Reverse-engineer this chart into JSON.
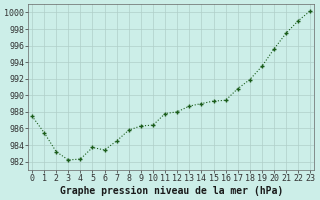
{
  "x": [
    0,
    1,
    2,
    3,
    4,
    5,
    6,
    7,
    8,
    9,
    10,
    11,
    12,
    13,
    14,
    15,
    16,
    17,
    18,
    19,
    20,
    21,
    22,
    23
  ],
  "y": [
    987.5,
    985.5,
    983.2,
    982.2,
    982.3,
    983.7,
    983.4,
    984.5,
    985.8,
    986.3,
    986.4,
    987.8,
    988.0,
    988.7,
    989.0,
    989.3,
    989.4,
    990.8,
    991.9,
    993.5,
    995.6,
    997.5,
    999.0,
    1000.2
  ],
  "line_color": "#1a5c1a",
  "marker_color": "#1a5c1a",
  "bg_color": "#cceee8",
  "grid_color": "#b0cfc9",
  "xlabel": "Graphe pression niveau de la mer (hPa)",
  "ylim": [
    981.0,
    1001.0
  ],
  "xlim": [
    -0.3,
    23.3
  ],
  "yticks": [
    982,
    984,
    986,
    988,
    990,
    992,
    994,
    996,
    998,
    1000
  ],
  "xtick_labels": [
    "0",
    "1",
    "2",
    "3",
    "4",
    "5",
    "6",
    "7",
    "8",
    "9",
    "10",
    "11",
    "12",
    "13",
    "14",
    "15",
    "16",
    "17",
    "18",
    "19",
    "20",
    "21",
    "22",
    "23"
  ],
  "xlabel_fontsize": 7.0,
  "tick_fontsize": 6.0,
  "line_width": 0.8
}
